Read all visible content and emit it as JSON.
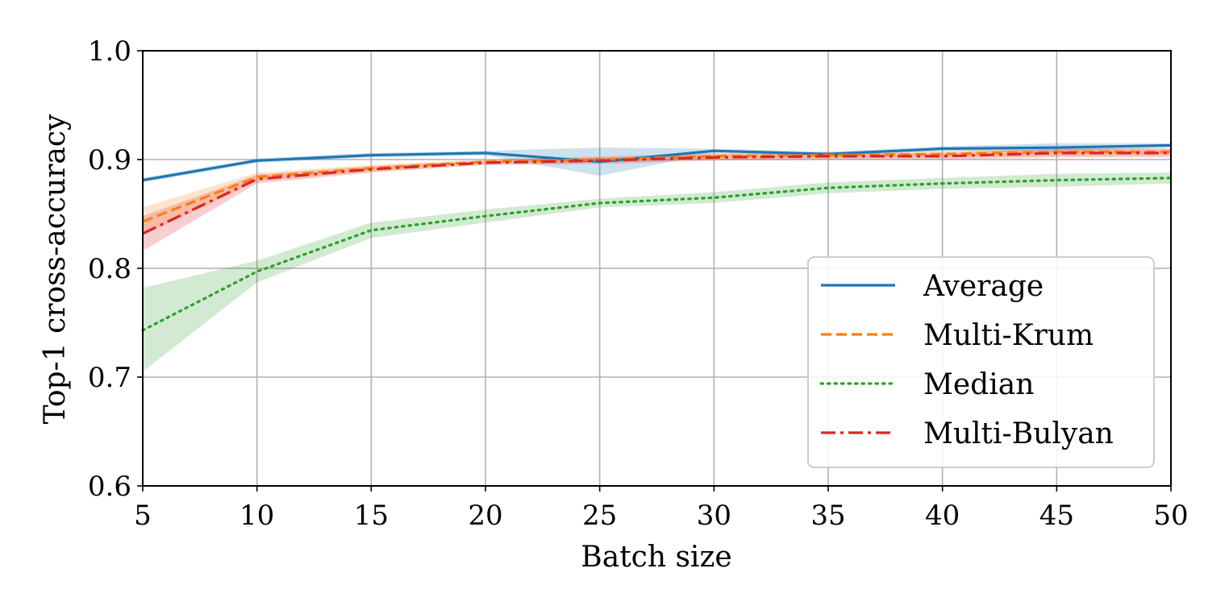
{
  "chart_data": {
    "type": "line",
    "title": "",
    "xlabel": "Batch size",
    "ylabel": "Top-1 cross-accuracy",
    "xlim": [
      5,
      50
    ],
    "ylim": [
      0.6,
      1.0
    ],
    "x_ticks": [
      5,
      10,
      15,
      20,
      25,
      30,
      35,
      40,
      45,
      50
    ],
    "x_tick_labels": [
      "5",
      "10",
      "15",
      "20",
      "25",
      "30",
      "35",
      "40",
      "45",
      "50"
    ],
    "y_ticks": [
      0.6,
      0.7,
      0.8,
      0.9,
      1.0
    ],
    "y_tick_labels": [
      "0.6",
      "0.7",
      "0.8",
      "0.9",
      "1.0"
    ],
    "grid": true,
    "legend_position": "lower-right",
    "x": [
      5,
      10,
      15,
      20,
      25,
      30,
      35,
      40,
      45,
      50
    ],
    "series": [
      {
        "name": "Average",
        "style": "solid",
        "color": "#1f77b4",
        "values": [
          0.881,
          0.899,
          0.904,
          0.906,
          0.898,
          0.908,
          0.905,
          0.91,
          0.911,
          0.913
        ],
        "lower": [
          0.879,
          0.897,
          0.902,
          0.904,
          0.885,
          0.906,
          0.903,
          0.908,
          0.907,
          0.911
        ],
        "upper": [
          0.883,
          0.901,
          0.906,
          0.908,
          0.911,
          0.91,
          0.907,
          0.912,
          0.915,
          0.915
        ]
      },
      {
        "name": "Multi-Krum",
        "style": "dashed",
        "color": "#ff7f0e",
        "values": [
          0.843,
          0.884,
          0.892,
          0.898,
          0.9,
          0.903,
          0.904,
          0.905,
          0.907,
          0.907
        ],
        "lower": [
          0.83,
          0.88,
          0.889,
          0.896,
          0.897,
          0.9,
          0.901,
          0.902,
          0.903,
          0.904
        ],
        "upper": [
          0.856,
          0.888,
          0.895,
          0.9,
          0.903,
          0.906,
          0.907,
          0.908,
          0.911,
          0.91
        ]
      },
      {
        "name": "Median",
        "style": "dotted",
        "color": "#2ca02c",
        "values": [
          0.743,
          0.797,
          0.835,
          0.848,
          0.86,
          0.865,
          0.874,
          0.878,
          0.881,
          0.883
        ],
        "lower": [
          0.705,
          0.787,
          0.828,
          0.842,
          0.856,
          0.86,
          0.869,
          0.873,
          0.875,
          0.878
        ],
        "upper": [
          0.782,
          0.807,
          0.842,
          0.854,
          0.864,
          0.87,
          0.879,
          0.883,
          0.887,
          0.888
        ]
      },
      {
        "name": "Multi-Bulyan",
        "style": "dashdot",
        "color": "#d62728",
        "values": [
          0.832,
          0.882,
          0.891,
          0.897,
          0.899,
          0.902,
          0.903,
          0.903,
          0.906,
          0.906
        ],
        "lower": [
          0.816,
          0.878,
          0.888,
          0.895,
          0.896,
          0.899,
          0.9,
          0.9,
          0.902,
          0.902
        ],
        "upper": [
          0.848,
          0.886,
          0.894,
          0.899,
          0.902,
          0.905,
          0.906,
          0.906,
          0.91,
          0.91
        ]
      }
    ]
  }
}
